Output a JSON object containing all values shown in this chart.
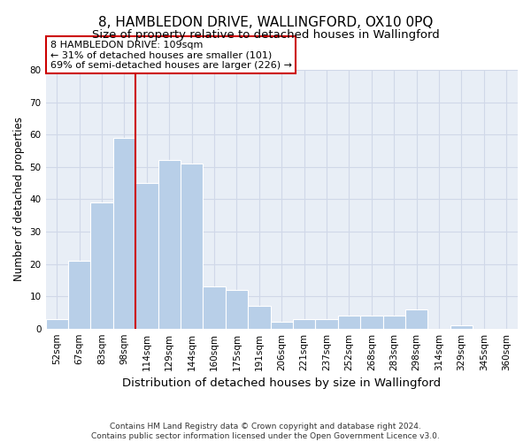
{
  "title_line1": "8, HAMBLEDON DRIVE, WALLINGFORD, OX10 0PQ",
  "title_line2": "Size of property relative to detached houses in Wallingford",
  "xlabel": "Distribution of detached houses by size in Wallingford",
  "ylabel": "Number of detached properties",
  "bin_labels": [
    "52sqm",
    "67sqm",
    "83sqm",
    "98sqm",
    "114sqm",
    "129sqm",
    "144sqm",
    "160sqm",
    "175sqm",
    "191sqm",
    "206sqm",
    "221sqm",
    "237sqm",
    "252sqm",
    "268sqm",
    "283sqm",
    "298sqm",
    "314sqm",
    "329sqm",
    "345sqm",
    "360sqm"
  ],
  "bar_heights": [
    3,
    21,
    39,
    59,
    45,
    52,
    51,
    13,
    12,
    7,
    2,
    3,
    3,
    4,
    4,
    4,
    6,
    0,
    1,
    0,
    0
  ],
  "bar_color": "#b8cfe8",
  "grid_color": "#d0d8e8",
  "vline_color": "#cc0000",
  "vline_x_index": 3.5,
  "annotation_text": "8 HAMBLEDON DRIVE: 109sqm\n← 31% of detached houses are smaller (101)\n69% of semi-detached houses are larger (226) →",
  "annotation_box_facecolor": "white",
  "annotation_box_edgecolor": "#cc0000",
  "ylim": [
    0,
    80
  ],
  "yticks": [
    0,
    10,
    20,
    30,
    40,
    50,
    60,
    70,
    80
  ],
  "footnote": "Contains HM Land Registry data © Crown copyright and database right 2024.\nContains public sector information licensed under the Open Government Licence v3.0.",
  "bg_color": "#ffffff",
  "plot_bg_color": "#e8eef6",
  "title1_fontsize": 11,
  "title2_fontsize": 9.5,
  "xlabel_fontsize": 9.5,
  "ylabel_fontsize": 8.5,
  "tick_fontsize": 7.5,
  "annotation_fontsize": 8,
  "footnote_fontsize": 6.5
}
